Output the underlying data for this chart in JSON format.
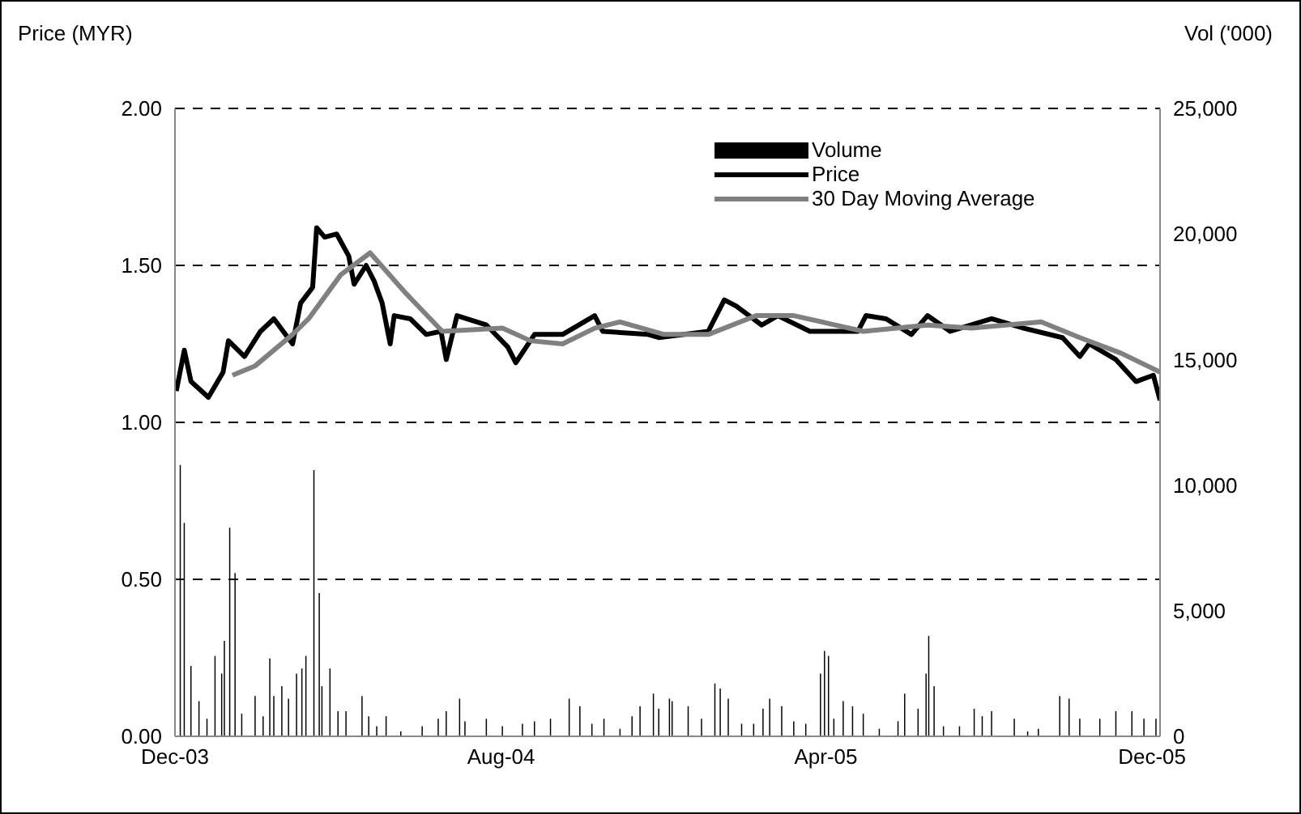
{
  "chart_data": {
    "type": "line",
    "ylabel": "Price (MYR)",
    "y2label": "Vol ('000)",
    "xlim": [
      "2003-12-01",
      "2005-12-07"
    ],
    "xticks": [
      {
        "value": "2003-12-01",
        "label": "Dec-03"
      },
      {
        "value": "2004-08-01",
        "label": "Aug-04"
      },
      {
        "value": "2005-04-01",
        "label": "Apr-05"
      },
      {
        "value": "2005-12-01",
        "label": "Dec-05"
      }
    ],
    "ylim": [
      0,
      2
    ],
    "yticks": [
      {
        "value": 0,
        "label": "0.00"
      },
      {
        "value": 0.5,
        "label": "0.50"
      },
      {
        "value": 1,
        "label": "1.00"
      },
      {
        "value": 1.5,
        "label": "1.50"
      },
      {
        "value": 2,
        "label": "2.00"
      }
    ],
    "y2lim": [
      0,
      25000
    ],
    "y2ticks": [
      0,
      {
        "value": 5000,
        "label": "5,000"
      },
      {
        "value": 10000,
        "label": "10,000"
      },
      {
        "value": 15000,
        "label": "15,000"
      },
      {
        "value": 20000,
        "label": "20,000"
      },
      {
        "value": 25000,
        "label": "25,000"
      }
    ],
    "grid": "y",
    "legend": "top right",
    "series": [
      {
        "name": "Volume",
        "type": "bar",
        "axis": "y2",
        "color": "#000000",
        "x": [
          "2003-12-05",
          "2003-12-08",
          "2003-12-13",
          "2003-12-19",
          "2003-12-25",
          "2003-12-31",
          "2004-01-05",
          "2004-01-07",
          "2004-01-11",
          "2004-01-15",
          "2004-01-20",
          "2004-01-30",
          "2004-02-05",
          "2004-02-10",
          "2004-02-13",
          "2004-02-19",
          "2004-02-24",
          "2004-03-01",
          "2004-03-05",
          "2004-03-08",
          "2004-03-14",
          "2004-03-18",
          "2004-03-20",
          "2004-03-26",
          "2004-04-01",
          "2004-04-07",
          "2004-04-19",
          "2004-04-24",
          "2004-04-30",
          "2004-05-07",
          "2004-05-18",
          "2004-06-03",
          "2004-06-15",
          "2004-06-21",
          "2004-07-01",
          "2004-07-05",
          "2004-07-21",
          "2004-08-02",
          "2004-08-17",
          "2004-08-26",
          "2004-09-07",
          "2004-09-21",
          "2004-09-29",
          "2004-10-08",
          "2004-10-17",
          "2004-10-29",
          "2004-11-07",
          "2004-11-13",
          "2004-11-23",
          "2004-11-27",
          "2004-12-05",
          "2004-12-07",
          "2004-12-19",
          "2004-12-29",
          "2005-01-08",
          "2005-01-12",
          "2005-01-18",
          "2005-01-28",
          "2005-02-06",
          "2005-02-13",
          "2005-02-18",
          "2005-02-27",
          "2005-03-08",
          "2005-03-17",
          "2005-03-28",
          "2005-03-31",
          "2005-04-03",
          "2005-04-07",
          "2005-04-14",
          "2005-04-21",
          "2005-04-29",
          "2005-05-11",
          "2005-05-25",
          "2005-05-30",
          "2005-06-09",
          "2005-06-15",
          "2005-06-17",
          "2005-06-21",
          "2005-06-28",
          "2005-07-10",
          "2005-07-21",
          "2005-07-27",
          "2005-08-03",
          "2005-08-20",
          "2005-08-30",
          "2005-09-07",
          "2005-09-23",
          "2005-09-30",
          "2005-10-08",
          "2005-10-23",
          "2005-11-04",
          "2005-11-16",
          "2005-11-25",
          "2005-12-04"
        ],
        "values": [
          10800,
          8500,
          2800,
          1400,
          700,
          3200,
          2500,
          3800,
          8300,
          6500,
          900,
          1600,
          800,
          3100,
          1600,
          2000,
          1500,
          2500,
          2700,
          3200,
          10600,
          5700,
          2000,
          2700,
          1000,
          1000,
          1600,
          800,
          400,
          800,
          200,
          400,
          700,
          1000,
          1500,
          600,
          700,
          400,
          500,
          600,
          700,
          1500,
          1200,
          500,
          700,
          300,
          800,
          1200,
          1700,
          1100,
          1500,
          1400,
          1200,
          700,
          2100,
          1900,
          1500,
          500,
          500,
          1100,
          1500,
          1200,
          600,
          500,
          2500,
          3400,
          3200,
          700,
          1400,
          1200,
          900,
          300,
          600,
          1700,
          1100,
          2500,
          4000,
          2000,
          400,
          400,
          1100,
          800,
          1000,
          700,
          200,
          300,
          1600,
          1500,
          700,
          700,
          1000,
          1000,
          700,
          700
        ]
      },
      {
        "name": "Price",
        "color": "#000000",
        "x": [
          "2003-12-02",
          "2003-12-08",
          "2003-12-13",
          "2003-12-26",
          "2004-01-06",
          "2004-01-10",
          "2004-01-22",
          "2004-02-03",
          "2004-02-13",
          "2004-02-27",
          "2004-03-04",
          "2004-03-13",
          "2004-03-16",
          "2004-03-22",
          "2004-03-31",
          "2004-04-09",
          "2004-04-13",
          "2004-04-22",
          "2004-04-28",
          "2004-05-04",
          "2004-05-10",
          "2004-05-13",
          "2004-05-25",
          "2004-06-06",
          "2004-06-17",
          "2004-06-21",
          "2004-06-29",
          "2004-07-21",
          "2004-08-06",
          "2004-08-12",
          "2004-08-26",
          "2004-09-16",
          "2004-10-10",
          "2004-10-16",
          "2004-11-19",
          "2004-11-27",
          "2005-01-03",
          "2005-01-15",
          "2005-01-24",
          "2005-02-12",
          "2005-02-24",
          "2005-03-20",
          "2005-04-25",
          "2005-05-01",
          "2005-05-16",
          "2005-06-04",
          "2005-06-16",
          "2005-07-03",
          "2005-08-03",
          "2005-08-27",
          "2005-09-25",
          "2005-10-08",
          "2005-10-15",
          "2005-11-04",
          "2005-11-19",
          "2005-12-02",
          "2005-12-07"
        ],
        "values": [
          1.1,
          1.23,
          1.13,
          1.08,
          1.16,
          1.26,
          1.21,
          1.29,
          1.33,
          1.25,
          1.38,
          1.43,
          1.62,
          1.59,
          1.6,
          1.53,
          1.44,
          1.5,
          1.45,
          1.38,
          1.25,
          1.34,
          1.33,
          1.28,
          1.29,
          1.2,
          1.34,
          1.31,
          1.24,
          1.19,
          1.28,
          1.28,
          1.34,
          1.29,
          1.28,
          1.27,
          1.29,
          1.39,
          1.37,
          1.31,
          1.34,
          1.29,
          1.29,
          1.34,
          1.33,
          1.28,
          1.34,
          1.29,
          1.33,
          1.3,
          1.27,
          1.21,
          1.25,
          1.2,
          1.13,
          1.15,
          1.07
        ]
      },
      {
        "name": "30 Day Moving Average",
        "color": "#808080",
        "x": [
          "2004-01-13",
          "2004-01-30",
          "2004-02-27",
          "2004-03-10",
          "2004-04-03",
          "2004-04-25",
          "2004-05-22",
          "2004-06-18",
          "2004-08-02",
          "2004-08-23",
          "2004-09-16",
          "2004-10-10",
          "2004-10-29",
          "2004-12-01",
          "2005-01-03",
          "2005-02-08",
          "2005-03-08",
          "2005-04-29",
          "2005-06-16",
          "2005-07-19",
          "2005-09-09",
          "2005-10-08",
          "2005-11-08",
          "2005-12-07"
        ],
        "values": [
          1.15,
          1.18,
          1.28,
          1.33,
          1.47,
          1.54,
          1.41,
          1.29,
          1.3,
          1.26,
          1.25,
          1.3,
          1.32,
          1.28,
          1.28,
          1.34,
          1.34,
          1.29,
          1.31,
          1.3,
          1.32,
          1.27,
          1.22,
          1.16
        ]
      }
    ]
  }
}
